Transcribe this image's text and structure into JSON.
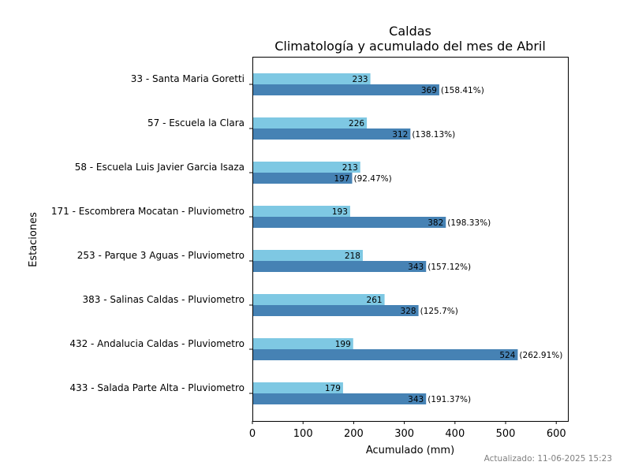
{
  "chart_data": {
    "type": "bar",
    "orientation": "horizontal",
    "title": "Caldas",
    "subtitle": "Climatología y acumulado del mes de Abril",
    "xlabel": "Acumulado (mm)",
    "ylabel": "Estaciones",
    "xlim": [
      0,
      623
    ],
    "xticks": [
      0,
      100,
      200,
      300,
      400,
      500,
      600
    ],
    "categories": [
      "33 - Santa Maria Goretti",
      "57 - Escuela la Clara",
      "58 - Escuela Luis Javier Garcia Isaza",
      "171 - Escombrera Mocatan - Pluviometro",
      "253 - Parque 3 Aguas - Pluviometro",
      "383 - Salinas Caldas - Pluviometro",
      "432 - Andalucia Caldas - Pluviometro",
      "433 - Salada Parte Alta - Pluviometro"
    ],
    "series": [
      {
        "color": "#7ec8e3",
        "values": [
          233,
          226,
          213,
          193,
          218,
          261,
          199,
          179
        ]
      },
      {
        "color": "#4682b4",
        "values": [
          369,
          312,
          197,
          382,
          343,
          328,
          524,
          343
        ],
        "percent_labels": [
          "(158.41%)",
          "(138.13%)",
          "(92.47%)",
          "(198.33%)",
          "(157.12%)",
          "(125.7%)",
          "(262.91%)",
          "(191.37%)"
        ]
      }
    ],
    "grid": false,
    "legend": "none"
  },
  "footer": "Actualizado: 11-06-2025 15:23"
}
